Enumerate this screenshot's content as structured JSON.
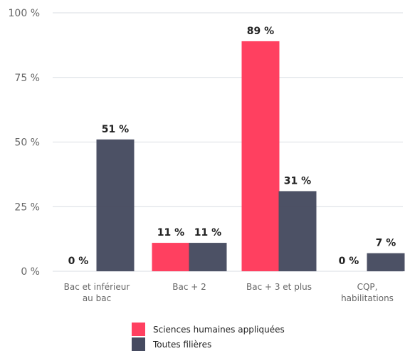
{
  "chart_data": {
    "type": "bar",
    "categories": [
      [
        "Bac et inférieur",
        "au bac"
      ],
      [
        "Bac + 2"
      ],
      [
        "Bac + 3 et plus"
      ],
      [
        "CQP,",
        "habilitations"
      ]
    ],
    "series": [
      {
        "name": "Sciences humaines appliquées",
        "color": "#ff4060",
        "values": [
          0,
          11,
          89,
          0
        ],
        "labels": [
          "0 %",
          "11 %",
          "89 %",
          "0 %"
        ]
      },
      {
        "name": "Toutes filières",
        "color": "#464b60",
        "values": [
          51,
          11,
          31,
          7
        ],
        "labels": [
          "51 %",
          "11 %",
          "31 %",
          "7 %"
        ]
      }
    ],
    "yticks": [
      {
        "value": 0,
        "label": "0 %"
      },
      {
        "value": 25,
        "label": "25 %"
      },
      {
        "value": 50,
        "label": "50 %"
      },
      {
        "value": 75,
        "label": "75 %"
      },
      {
        "value": 100,
        "label": "100 %"
      }
    ],
    "ylim": [
      0,
      100
    ],
    "grid": true,
    "legend_position": "bottom-center",
    "title": "",
    "xlabel": "",
    "ylabel": ""
  }
}
